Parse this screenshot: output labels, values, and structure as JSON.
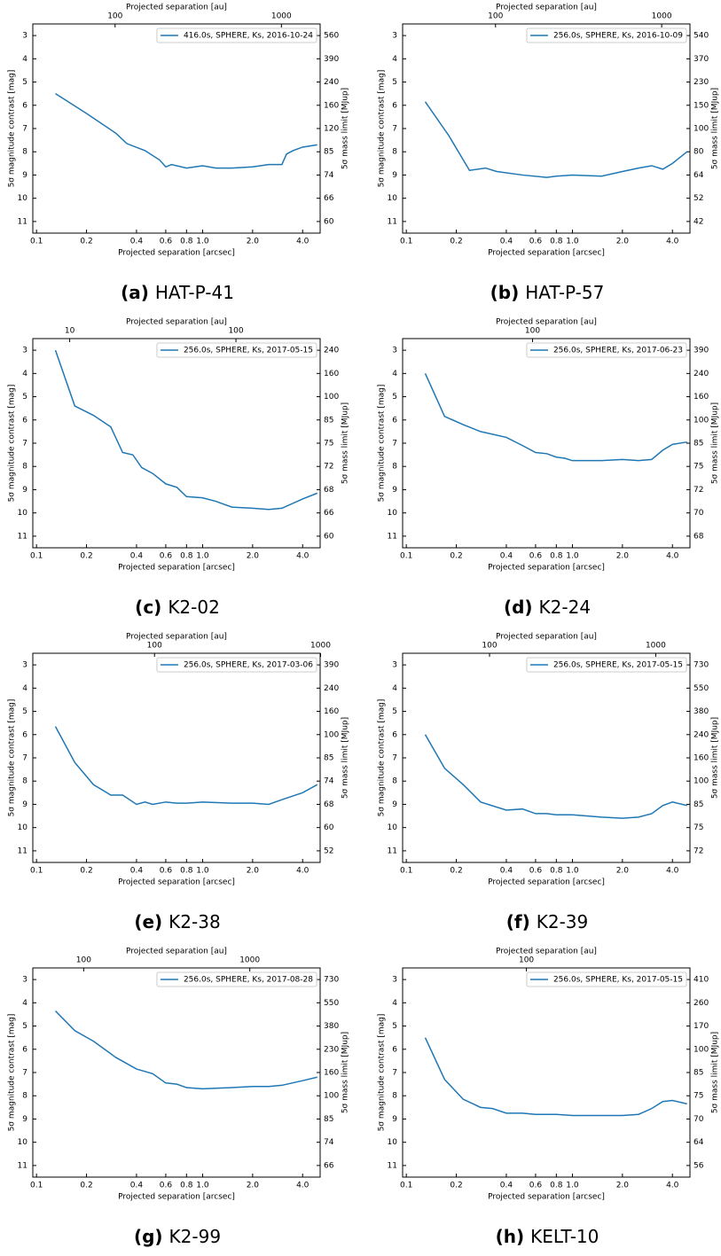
{
  "chart_data": [
    {
      "type": "line",
      "xscale": "log",
      "xlabel": "Projected separation [arcsec]",
      "x2label": "Projected separation [au]",
      "ylabel": "5σ magnitude contrast [mag]",
      "y2label": "5σ mass limit [MJup]",
      "caption": {
        "label": "(a)",
        "text": "HAT-P-41"
      },
      "xlim": [
        0.095,
        5.1
      ],
      "xticks": [
        0.1,
        0.2,
        0.4,
        0.6,
        0.8,
        {
          "value": 1,
          "label": "1.0"
        },
        {
          "value": 2,
          "label": "2.0"
        },
        {
          "value": 4,
          "label": "4.0"
        }
      ],
      "x2lim": [
        32,
        1710
      ],
      "x2ticks": [
        100,
        1000
      ],
      "ylim": [
        11.5,
        2.5
      ],
      "yticks": [
        3,
        4,
        5,
        6,
        7,
        8,
        9,
        10,
        11
      ],
      "y2ticks": [
        560,
        390,
        240,
        160,
        120,
        85,
        74,
        66,
        60
      ],
      "x": [
        0.13,
        0.2,
        0.3,
        0.35,
        0.45,
        0.55,
        0.6,
        0.65,
        0.8,
        1.0,
        1.2,
        1.5,
        2.0,
        2.5,
        3.0,
        3.2,
        3.5,
        4.0,
        4.9
      ],
      "series": [
        {
          "name": "416.0s, SPHERE, Ks, 2016-10-24",
          "color": "#1f77b4",
          "values": [
            5.5,
            6.35,
            7.2,
            7.65,
            7.95,
            8.35,
            8.65,
            8.55,
            8.7,
            8.6,
            8.7,
            8.7,
            8.65,
            8.55,
            8.55,
            8.1,
            7.95,
            7.8,
            7.7
          ]
        }
      ]
    },
    {
      "type": "line",
      "xscale": "log",
      "xlabel": "Projected separation [arcsec]",
      "x2label": "Projected separation [au]",
      "ylabel": "5σ magnitude contrast [mag]",
      "y2label": "5σ mass limit [MJup]",
      "caption": {
        "label": "(b)",
        "text": "HAT-P-57"
      },
      "xlim": [
        0.095,
        5.1
      ],
      "xticks": [
        0.1,
        0.2,
        0.4,
        0.6,
        0.8,
        {
          "value": 1,
          "label": "1.0"
        },
        {
          "value": 2,
          "label": "2.0"
        },
        {
          "value": 4,
          "label": "4.0"
        }
      ],
      "x2lim": [
        27.6,
        1480
      ],
      "x2ticks": [
        100,
        1000
      ],
      "ylim": [
        11.5,
        2.5
      ],
      "yticks": [
        3,
        4,
        5,
        6,
        7,
        8,
        9,
        10,
        11
      ],
      "y2ticks": [
        540,
        370,
        230,
        150,
        100,
        80,
        64,
        52,
        42
      ],
      "x": [
        0.13,
        0.18,
        0.24,
        0.3,
        0.35,
        0.5,
        0.7,
        0.8,
        1.0,
        1.5,
        2.0,
        2.5,
        3.0,
        3.5,
        4.0,
        4.9
      ],
      "series": [
        {
          "name": "256.0s, SPHERE, Ks, 2016-10-09",
          "color": "#1f77b4",
          "values": [
            5.85,
            7.3,
            8.8,
            8.7,
            8.85,
            9.0,
            9.1,
            9.05,
            9.0,
            9.05,
            8.85,
            8.7,
            8.6,
            8.75,
            8.5,
            8.0
          ]
        }
      ]
    },
    {
      "type": "line",
      "xscale": "log",
      "xlabel": "Projected separation [arcsec]",
      "x2label": "Projected separation [au]",
      "ylabel": "5σ magnitude contrast [mag]",
      "y2label": "5σ mass limit [MJup]",
      "caption": {
        "label": "(c)",
        "text": "K2-02"
      },
      "xlim": [
        0.095,
        5.1
      ],
      "xticks": [
        0.1,
        0.2,
        0.4,
        0.6,
        0.8,
        {
          "value": 1,
          "label": "1.0"
        },
        {
          "value": 2,
          "label": "2.0"
        },
        {
          "value": 4,
          "label": "4.0"
        }
      ],
      "x2lim": [
        6,
        321
      ],
      "x2ticks": [
        10,
        100
      ],
      "ylim": [
        11.5,
        2.5
      ],
      "yticks": [
        3,
        4,
        5,
        6,
        7,
        8,
        9,
        10,
        11
      ],
      "y2ticks": [
        240,
        160,
        100,
        85,
        75,
        72,
        68,
        66,
        60
      ],
      "x": [
        0.13,
        0.17,
        0.22,
        0.28,
        0.33,
        0.38,
        0.43,
        0.5,
        0.6,
        0.7,
        0.8,
        1.0,
        1.2,
        1.5,
        2.0,
        2.5,
        3.0,
        4.0,
        4.9
      ],
      "series": [
        {
          "name": "256.0s, SPHERE, Ks, 2017-05-15",
          "color": "#1f77b4",
          "values": [
            3.0,
            5.4,
            5.8,
            6.3,
            7.4,
            7.5,
            8.05,
            8.3,
            8.75,
            8.9,
            9.3,
            9.35,
            9.5,
            9.75,
            9.8,
            9.85,
            9.8,
            9.4,
            9.15
          ]
        }
      ]
    },
    {
      "type": "line",
      "xscale": "log",
      "xlabel": "Projected separation [arcsec]",
      "x2label": "Projected separation [au]",
      "ylabel": "5σ magnitude contrast [mag]",
      "y2label": "5σ mass limit [MJup]",
      "caption": {
        "label": "(d)",
        "text": "K2-24"
      },
      "xlim": [
        0.095,
        5.1
      ],
      "xticks": [
        0.1,
        0.2,
        0.4,
        0.6,
        0.8,
        {
          "value": 1,
          "label": "1.0"
        },
        {
          "value": 2,
          "label": "2.0"
        },
        {
          "value": 4,
          "label": "4.0"
        }
      ],
      "x2lim": [
        16.5,
        887
      ],
      "x2ticks": [
        100
      ],
      "ylim": [
        11.5,
        2.5
      ],
      "yticks": [
        3,
        4,
        5,
        6,
        7,
        8,
        9,
        10,
        11
      ],
      "y2ticks": [
        390,
        240,
        160,
        100,
        85,
        75,
        72,
        70,
        68
      ],
      "x": [
        0.13,
        0.17,
        0.22,
        0.28,
        0.4,
        0.5,
        0.6,
        0.7,
        0.8,
        0.9,
        1.0,
        1.5,
        2.0,
        2.5,
        3.0,
        3.5,
        4.0,
        4.9
      ],
      "series": [
        {
          "name": "256.0s, SPHERE, Ks, 2017-06-23",
          "color": "#1f77b4",
          "values": [
            4.0,
            5.85,
            6.2,
            6.5,
            6.75,
            7.1,
            7.4,
            7.45,
            7.6,
            7.65,
            7.75,
            7.75,
            7.7,
            7.75,
            7.7,
            7.3,
            7.05,
            6.95
          ]
        }
      ]
    },
    {
      "type": "line",
      "xscale": "log",
      "xlabel": "Projected separation [arcsec]",
      "x2label": "Projected separation [au]",
      "ylabel": "5σ magnitude contrast [mag]",
      "y2label": "5σ mass limit [MJup]",
      "caption": {
        "label": "(e)",
        "text": "K2-38"
      },
      "xlim": [
        0.095,
        5.1
      ],
      "xticks": [
        0.1,
        0.2,
        0.4,
        0.6,
        0.8,
        {
          "value": 1,
          "label": "1.0"
        },
        {
          "value": 2,
          "label": "2.0"
        },
        {
          "value": 4,
          "label": "4.0"
        }
      ],
      "x2lim": [
        18.5,
        994
      ],
      "x2ticks": [
        100,
        1000
      ],
      "ylim": [
        11.5,
        2.5
      ],
      "yticks": [
        3,
        4,
        5,
        6,
        7,
        8,
        9,
        10,
        11
      ],
      "y2ticks": [
        390,
        240,
        160,
        100,
        85,
        74,
        68,
        60,
        52
      ],
      "x": [
        0.13,
        0.17,
        0.22,
        0.28,
        0.33,
        0.4,
        0.45,
        0.5,
        0.6,
        0.7,
        0.8,
        1.0,
        1.5,
        2.0,
        2.5,
        3.0,
        4.0,
        4.9
      ],
      "series": [
        {
          "name": "256.0s, SPHERE, Ks, 2017-03-06",
          "color": "#1f77b4",
          "values": [
            5.65,
            7.2,
            8.15,
            8.6,
            8.6,
            9.0,
            8.9,
            9.0,
            8.9,
            8.95,
            8.95,
            8.9,
            8.95,
            8.95,
            9.0,
            8.8,
            8.5,
            8.15
          ]
        }
      ]
    },
    {
      "type": "line",
      "xscale": "log",
      "xlabel": "Projected separation [arcsec]",
      "x2label": "Projected separation [au]",
      "ylabel": "5σ magnitude contrast [mag]",
      "y2label": "5σ mass limit [MJup]",
      "caption": {
        "label": "(f)",
        "text": "K2-39"
      },
      "xlim": [
        0.095,
        5.1
      ],
      "xticks": [
        0.1,
        0.2,
        0.4,
        0.6,
        0.8,
        {
          "value": 1,
          "label": "1.0"
        },
        {
          "value": 2,
          "label": "2.0"
        },
        {
          "value": 4,
          "label": "4.0"
        }
      ],
      "x2lim": [
        30,
        1607
      ],
      "x2ticks": [
        100,
        1000
      ],
      "ylim": [
        11.5,
        2.5
      ],
      "yticks": [
        3,
        4,
        5,
        6,
        7,
        8,
        9,
        10,
        11
      ],
      "y2ticks": [
        730,
        550,
        380,
        240,
        160,
        100,
        85,
        75,
        72
      ],
      "x": [
        0.13,
        0.17,
        0.22,
        0.28,
        0.4,
        0.5,
        0.6,
        0.7,
        0.8,
        1.0,
        1.5,
        2.0,
        2.5,
        3.0,
        3.5,
        4.0,
        4.9
      ],
      "series": [
        {
          "name": "256.0s, SPHERE, Ks, 2017-05-15",
          "color": "#1f77b4",
          "values": [
            6.0,
            7.45,
            8.15,
            8.9,
            9.25,
            9.2,
            9.4,
            9.4,
            9.45,
            9.45,
            9.55,
            9.6,
            9.55,
            9.4,
            9.05,
            8.9,
            9.05
          ]
        }
      ]
    },
    {
      "type": "line",
      "xscale": "log",
      "xlabel": "Projected separation [arcsec]",
      "x2label": "Projected separation [au]",
      "ylabel": "5σ magnitude contrast [mag]",
      "y2label": "5σ mass limit [MJup]",
      "caption": {
        "label": "(g)",
        "text": "K2-99"
      },
      "xlim": [
        0.095,
        5.1
      ],
      "xticks": [
        0.1,
        0.2,
        0.4,
        0.6,
        0.8,
        {
          "value": 1,
          "label": "1.0"
        },
        {
          "value": 2,
          "label": "2.0"
        },
        {
          "value": 4,
          "label": "4.0"
        }
      ],
      "x2lim": [
        49.4,
        2652
      ],
      "x2ticks": [
        100,
        1000
      ],
      "ylim": [
        11.5,
        2.5
      ],
      "yticks": [
        3,
        4,
        5,
        6,
        7,
        8,
        9,
        10,
        11
      ],
      "y2ticks": [
        730,
        550,
        380,
        230,
        160,
        100,
        85,
        74,
        66
      ],
      "x": [
        0.13,
        0.17,
        0.22,
        0.3,
        0.4,
        0.5,
        0.6,
        0.7,
        0.8,
        1.0,
        1.5,
        2.0,
        2.5,
        3.0,
        4.0,
        4.9
      ],
      "series": [
        {
          "name": "256.0s, SPHERE, Ks, 2017-08-28",
          "color": "#1f77b4",
          "values": [
            4.35,
            5.2,
            5.65,
            6.35,
            6.85,
            7.05,
            7.45,
            7.5,
            7.65,
            7.7,
            7.65,
            7.6,
            7.6,
            7.55,
            7.35,
            7.2
          ]
        }
      ]
    },
    {
      "type": "line",
      "xscale": "log",
      "xlabel": "Projected separation [arcsec]",
      "x2label": "Projected separation [au]",
      "ylabel": "5σ magnitude contrast [mag]",
      "y2label": "5σ mass limit [MJup]",
      "caption": {
        "label": "(h)",
        "text": "KELT-10"
      },
      "xlim": [
        0.095,
        5.1
      ],
      "xticks": [
        0.1,
        0.2,
        0.4,
        0.6,
        0.8,
        {
          "value": 1,
          "label": "1.0"
        },
        {
          "value": 2,
          "label": "2.0"
        },
        {
          "value": 4,
          "label": "4.0"
        }
      ],
      "x2lim": [
        18,
        964
      ],
      "x2ticks": [
        100
      ],
      "ylim": [
        11.5,
        2.5
      ],
      "yticks": [
        3,
        4,
        5,
        6,
        7,
        8,
        9,
        10,
        11
      ],
      "y2ticks": [
        410,
        260,
        170,
        100,
        85,
        75,
        70,
        64,
        56
      ],
      "x": [
        0.13,
        0.17,
        0.22,
        0.28,
        0.33,
        0.4,
        0.5,
        0.6,
        0.8,
        1.0,
        1.5,
        2.0,
        2.5,
        3.0,
        3.5,
        4.0,
        4.9
      ],
      "series": [
        {
          "name": "256.0s, SPHERE, Ks, 2017-05-15",
          "color": "#1f77b4",
          "values": [
            5.5,
            7.3,
            8.15,
            8.5,
            8.55,
            8.75,
            8.75,
            8.8,
            8.8,
            8.85,
            8.85,
            8.85,
            8.8,
            8.55,
            8.25,
            8.2,
            8.35
          ]
        }
      ]
    }
  ]
}
